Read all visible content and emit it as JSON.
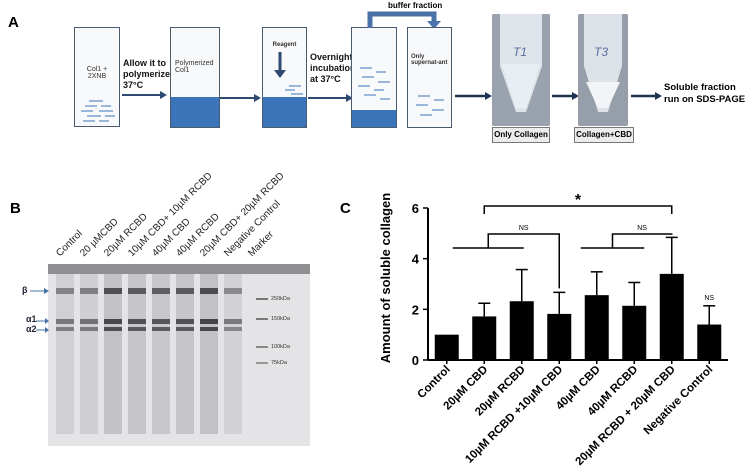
{
  "panelA": {
    "letter": "A",
    "tube1_label": "Col1 + 2XNB",
    "step1": "Allow it to polymerize at 37°C",
    "tube2_label": "Polymerized Col1",
    "tube3_label": "Reagent",
    "step2": "Overnight incubation at 37°C",
    "buffer_label": "buffer fraction",
    "tube5_label": "Only supernat-ant",
    "photo1_label": "Only Collagen",
    "photo2_label": "Collagen+CBD",
    "final_step": "Soluble fraction run on SDS-PAGE",
    "tube_marks": [
      "T1",
      "T3"
    ],
    "colors": {
      "collagen": "#3b74b8",
      "arrow": "#2f4a70"
    }
  },
  "panelB": {
    "letter": "B",
    "lanes": [
      "Control",
      "20 µMCBD",
      "20µM RCBD",
      "10µM CBD+ 10µM RCBD",
      "40µM CBD",
      "40µM RCBD",
      "20µM CBD+ 20µM RCBD",
      "Negative Control",
      "Marker"
    ],
    "bands": [
      "β",
      "α1",
      "α2"
    ],
    "markers": [
      "250kDa",
      "150kDa",
      "100kDa",
      "75kDa"
    ]
  },
  "panelC": {
    "letter": "C",
    "significance": "*",
    "ns_labels": [
      "NS",
      "NS",
      "NS"
    ]
  },
  "chart_data": {
    "type": "bar",
    "ylabel": "Amount of soluble collagen",
    "ylim": [
      0,
      6
    ],
    "yticks": [
      0,
      2,
      4,
      6
    ],
    "categories": [
      "Control",
      "20µM CBD",
      "20µM RCBD",
      "10µM RCBD +10µM CBD",
      "40µM CBD",
      "40µM RCBD",
      "20µM RCBD + 20µM CBD",
      "Negative Control"
    ],
    "values": [
      1.0,
      1.72,
      2.32,
      1.82,
      2.56,
      2.14,
      3.4,
      1.4
    ],
    "errors": [
      0.0,
      0.52,
      1.25,
      0.85,
      0.92,
      0.92,
      1.44,
      0.74
    ],
    "color": "#000000"
  }
}
